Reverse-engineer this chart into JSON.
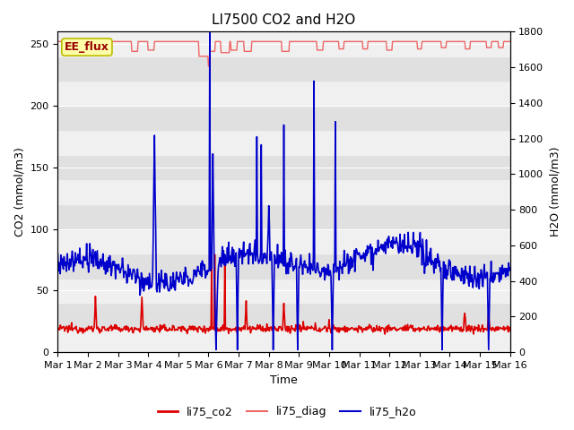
{
  "title": "LI7500 CO2 and H2O",
  "xlabel": "Time",
  "ylabel_left": "CO2 (mmol/m3)",
  "ylabel_right": "H2O (mmol/m3)",
  "ylim_left": [
    0,
    260
  ],
  "ylim_right": [
    0,
    1800
  ],
  "xtick_labels": [
    "Mar 1",
    "Mar 2",
    "Mar 3",
    "Mar 4",
    "Mar 5",
    "Mar 6",
    "Mar 7",
    "Mar 8",
    "Mar 9",
    "Mar 10",
    "Mar 11",
    "Mar 12",
    "Mar 13",
    "Mar 14",
    "Mar 15",
    "Mar 16"
  ],
  "color_co2": "#dd0000",
  "color_diag": "#ee6666",
  "color_h2o": "#0000cc",
  "annotation_text": "EE_flux",
  "annotation_bg": "#ffffaa",
  "annotation_border": "#bbbb00",
  "title_fontsize": 11,
  "axis_label_fontsize": 9,
  "tick_fontsize": 8,
  "legend_fontsize": 9,
  "background_color": "#ffffff",
  "axes_bg_color": "#ebebeb",
  "band_color_light": "#f0f0f0",
  "band_color_dark": "#e0e0e0"
}
